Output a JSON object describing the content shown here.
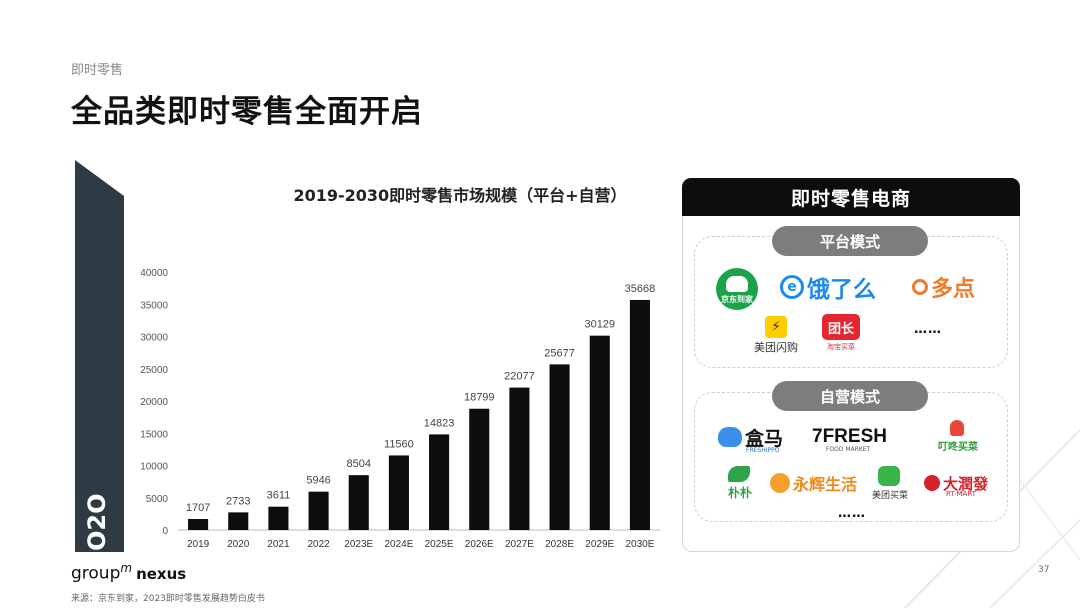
{
  "header": {
    "subtitle": "即时零售",
    "title": "全品类即时零售全面开启"
  },
  "banner": {
    "label": "O2O",
    "color": "#2f3a44"
  },
  "chart_data": {
    "type": "bar",
    "title": "2019-2030即时零售市场规模（平台+自营）",
    "categories": [
      "2019",
      "2020",
      "2021",
      "2022",
      "2023E",
      "2024E",
      "2025E",
      "2026E",
      "2027E",
      "2028E",
      "2029E",
      "2030E"
    ],
    "values": [
      1707,
      2733,
      3611,
      5946,
      8504,
      11560,
      14823,
      18799,
      22077,
      25677,
      30129,
      35668
    ],
    "value_labels": [
      "1707",
      "2733",
      "3611",
      "5946",
      "8504",
      "11560",
      "14823",
      "18799",
      "22077",
      "25677",
      "30129",
      "35668"
    ],
    "yticks": [
      "0",
      "5000",
      "10000",
      "15000",
      "20000",
      "25000",
      "30000",
      "35000",
      "40000"
    ],
    "ylim": [
      0,
      40000
    ],
    "bar_color": "#0d0d0d",
    "grid": false
  },
  "panel": {
    "title": "即时零售电商",
    "platform": {
      "label": "平台模式",
      "logos": {
        "jddj": "京东到家",
        "eleme": "饿了么",
        "duodian": "多点",
        "meituan_shangou": "美团闪购",
        "tuanzhang": "团长",
        "tuanzhang_sub": "淘宝买菜"
      },
      "more": "……"
    },
    "self": {
      "label": "自营模式",
      "logos": {
        "hema": "盒马",
        "hema_sub": "FRESHIPPO",
        "sevenfresh": "7FRESH",
        "sevenfresh_sub": "FOOD MARKET",
        "dingdong": "叮咚买菜",
        "pupu": "朴朴",
        "yonghui": "永辉生活",
        "meituan_maicai": "美团买菜",
        "rtmart": "大潤發",
        "rtmart_sub": "RT-MART"
      },
      "more": "……"
    }
  },
  "footer": {
    "brand_left": "group",
    "brand_sup": "m",
    "brand_right": "nexus",
    "source": "来源：京东到家，2023即时零售发展趋势白皮书",
    "page": "37"
  }
}
